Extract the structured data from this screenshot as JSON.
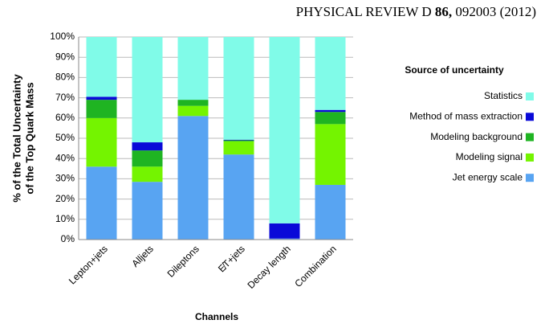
{
  "header": {
    "journal": "PHYSICAL REVIEW D",
    "volume": "86,",
    "article": "092003 (2012)"
  },
  "chart_data": {
    "type": "stacked-bar",
    "x_label": "Channels",
    "y_label": [
      "% of the Total Uncertainty",
      "of the Top Quark Mass"
    ],
    "legend_title": "Source of uncertainty",
    "categories": [
      "Lepton+jets",
      "Alljets",
      "Dileptons",
      "E̸T+jets",
      "Decay length",
      "Combination"
    ],
    "series": [
      {
        "name": "Jet energy scale",
        "color": "#58a4f2",
        "values": [
          36,
          28.5,
          61,
          42,
          0.5,
          27
        ]
      },
      {
        "name": "Modeling signal",
        "color": "#74f400",
        "values": [
          24,
          7.5,
          5,
          6.5,
          0,
          30
        ]
      },
      {
        "name": "Modeling background",
        "color": "#1fb422",
        "values": [
          9,
          8,
          3,
          0.5,
          0,
          6
        ]
      },
      {
        "name": "Method of mass extraction",
        "color": "#0a0ad8",
        "values": [
          1.5,
          4,
          0,
          0.3,
          7.5,
          1
        ]
      },
      {
        "name": "Statistics",
        "color": "#80fbe8",
        "values": [
          29.5,
          52,
          31,
          50.7,
          92,
          36
        ]
      }
    ],
    "ylim": [
      0,
      100
    ],
    "yticks": [
      {
        "value": 0,
        "label": "0%"
      },
      {
        "value": 10,
        "label": "10%"
      },
      {
        "value": 20,
        "label": "20%"
      },
      {
        "value": 30,
        "label": "30%"
      },
      {
        "value": 40,
        "label": "40%"
      },
      {
        "value": 50,
        "label": "50%"
      },
      {
        "value": 60,
        "label": "60%"
      },
      {
        "value": 70,
        "label": "70%"
      },
      {
        "value": 80,
        "label": "80%"
      },
      {
        "value": 90,
        "label": "90%"
      },
      {
        "value": 100,
        "label": "100%"
      }
    ],
    "grid": true
  }
}
